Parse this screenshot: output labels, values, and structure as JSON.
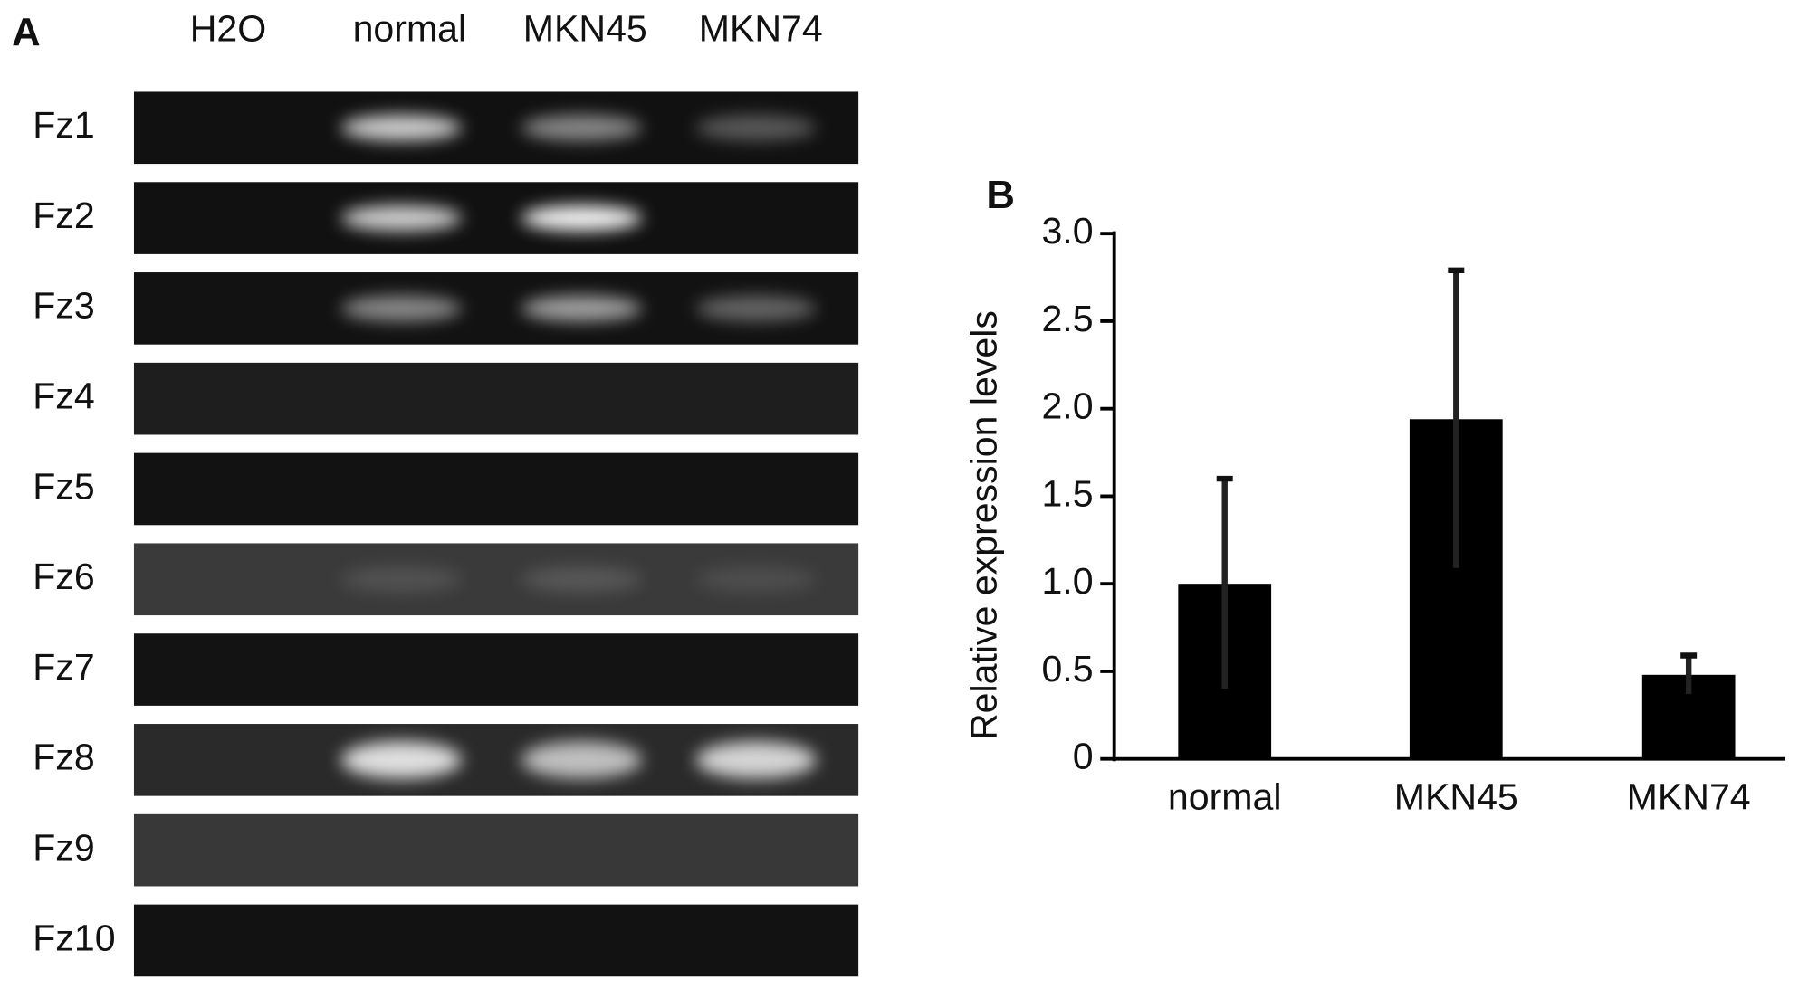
{
  "panel_a": {
    "label": "A",
    "lanes": [
      "H2O",
      "normal",
      "MKN45",
      "MKN74"
    ],
    "rows": [
      "Fz1",
      "Fz2",
      "Fz3",
      "Fz4",
      "Fz5",
      "Fz6",
      "Fz7",
      "Fz8",
      "Fz9",
      "Fz10"
    ]
  },
  "chart_data": {
    "type": "bar",
    "panel_label": "B",
    "y_label": "Relative expression levels",
    "categories": [
      "normal",
      "MKN45",
      "MKN74"
    ],
    "values": [
      1.0,
      1.94,
      0.48
    ],
    "errors": [
      0.6,
      0.85,
      0.11
    ],
    "color": "#000000",
    "ylim": [
      0,
      3
    ],
    "yticks": [
      0,
      0.5,
      {
        "value": 1,
        "label": "1.0"
      },
      1.5,
      {
        "value": 2,
        "label": "2.0"
      },
      2.5,
      {
        "value": 3,
        "label": "3.0"
      }
    ],
    "grid": false
  }
}
